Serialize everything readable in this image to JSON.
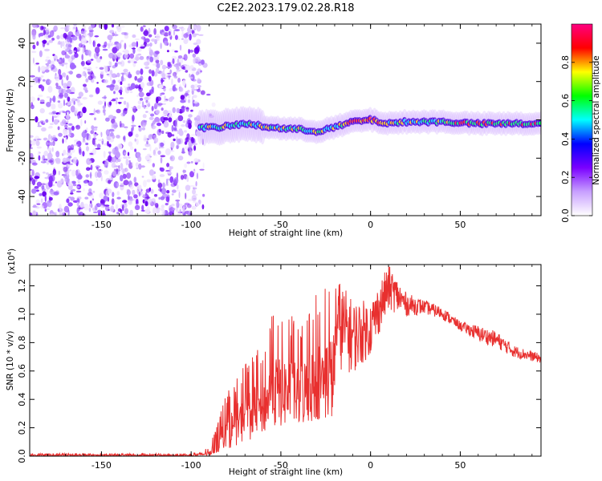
{
  "title": "C2E2.2023.179.02.28.R18",
  "chart_data": [
    {
      "type": "heatmap",
      "name": "spectrogram",
      "xlabel": "Height of straight line (km)",
      "ylabel": "Frequency (Hz)",
      "xlim": [
        -190,
        95
      ],
      "ylim": [
        -50,
        50
      ],
      "xticks": [
        -150,
        -100,
        -50,
        0,
        50
      ],
      "yticks": [
        -40,
        -20,
        0,
        20,
        40
      ],
      "noise_region_x": [
        -190,
        -95
      ],
      "center_ridge": [
        {
          "x": -95,
          "y": -4
        },
        {
          "x": -85,
          "y": -4
        },
        {
          "x": -70,
          "y": -2
        },
        {
          "x": -55,
          "y": -4
        },
        {
          "x": -40,
          "y": -5
        },
        {
          "x": -30,
          "y": -6
        },
        {
          "x": -20,
          "y": -4
        },
        {
          "x": -10,
          "y": -1
        },
        {
          "x": 0,
          "y": 0
        },
        {
          "x": 10,
          "y": -2
        },
        {
          "x": 20,
          "y": -1
        },
        {
          "x": 40,
          "y": -1
        },
        {
          "x": 60,
          "y": -2
        },
        {
          "x": 80,
          "y": -2
        },
        {
          "x": 95,
          "y": -2
        }
      ],
      "colorbar": {
        "label": "Normalized spectral amplitude",
        "range": [
          0,
          1
        ],
        "ticks": [
          "0.0",
          "0.2",
          "0.4",
          "0.6",
          "0.8"
        ],
        "colors": [
          "#ffffff",
          "#c8a0ff",
          "#7a00ff",
          "#0000ff",
          "#00ffff",
          "#00ff00",
          "#ffff00",
          "#ff0000",
          "#ff0080"
        ]
      }
    },
    {
      "type": "line",
      "name": "snr",
      "xlabel": "Height of straight line (km)",
      "ylabel": "SNR (10 * v/v)",
      "y_multiplier": "(x10",
      "y_multiplier_exp": "4",
      "y_multiplier_close": ")",
      "xlim": [
        -190,
        95
      ],
      "ylim": [
        0,
        1.35
      ],
      "xticks": [
        -150,
        -100,
        -50,
        0,
        50
      ],
      "yticks": [
        "0.0",
        "0.2",
        "0.4",
        "0.6",
        "0.8",
        "1.0",
        "1.2"
      ],
      "color": "#e8302f",
      "envelope": [
        {
          "x": -190,
          "lo": 0.0,
          "hi": 0.02
        },
        {
          "x": -100,
          "lo": 0.0,
          "hi": 0.02
        },
        {
          "x": -90,
          "lo": 0.0,
          "hi": 0.06
        },
        {
          "x": -80,
          "lo": 0.05,
          "hi": 0.45
        },
        {
          "x": -70,
          "lo": 0.1,
          "hi": 0.65
        },
        {
          "x": -60,
          "lo": 0.15,
          "hi": 0.8
        },
        {
          "x": -52,
          "lo": 0.2,
          "hi": 1.1
        },
        {
          "x": -40,
          "lo": 0.2,
          "hi": 0.95
        },
        {
          "x": -30,
          "lo": 0.25,
          "hi": 1.15
        },
        {
          "x": -20,
          "lo": 0.25,
          "hi": 1.3
        },
        {
          "x": -10,
          "lo": 0.3,
          "hi": 1.1
        },
        {
          "x": 0,
          "lo": 0.5,
          "hi": 1.1
        },
        {
          "x": 10,
          "lo": 0.85,
          "hi": 1.35
        },
        {
          "x": 20,
          "lo": 0.9,
          "hi": 1.15
        },
        {
          "x": 30,
          "lo": 0.95,
          "hi": 1.1
        },
        {
          "x": 40,
          "lo": 0.92,
          "hi": 1.05
        },
        {
          "x": 50,
          "lo": 0.85,
          "hi": 0.95
        },
        {
          "x": 60,
          "lo": 0.75,
          "hi": 0.92
        },
        {
          "x": 70,
          "lo": 0.7,
          "hi": 0.88
        },
        {
          "x": 80,
          "lo": 0.65,
          "hi": 0.78
        },
        {
          "x": 95,
          "lo": 0.62,
          "hi": 0.72
        }
      ]
    }
  ]
}
